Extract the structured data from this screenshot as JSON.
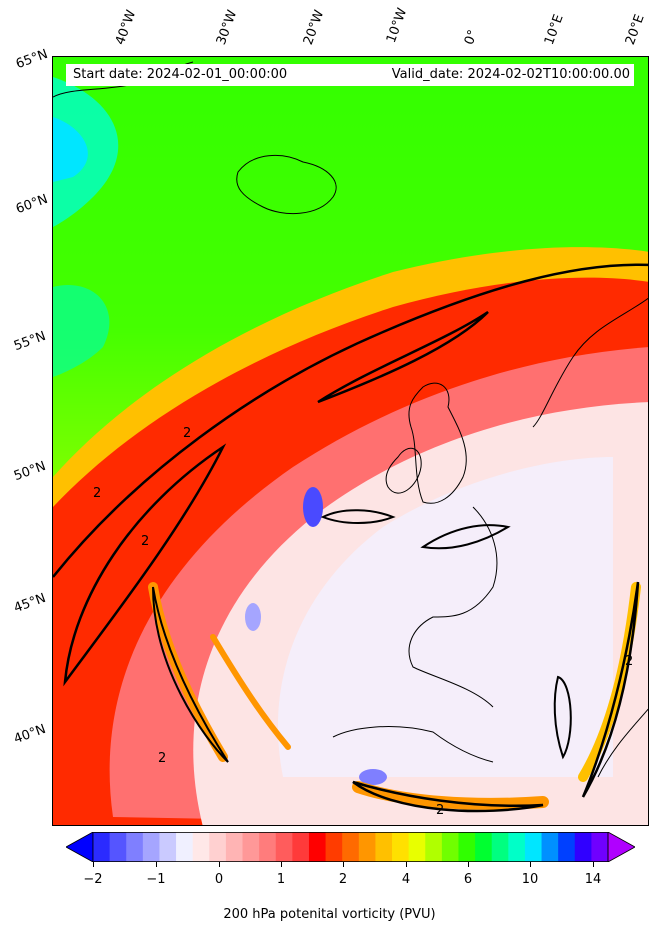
{
  "header": {
    "start_date": "Start date: 2024-02-01_00:00:00",
    "valid_date": "Valid_date: 2024-02-02T10:00:00.00"
  },
  "map": {
    "lon_labels": [
      "40°W",
      "30°W",
      "20°W",
      "10°W",
      "0°",
      "10°E",
      "20°E"
    ],
    "lat_labels": [
      "65°N",
      "60°N",
      "55°N",
      "50°N",
      "45°N",
      "40°N"
    ],
    "contour_label": "2",
    "colors": {
      "background_green": "#33ff00",
      "jet_red": "#ff1a00",
      "trough_pale": "#fde8e8",
      "cyan": "#00ffe0"
    }
  },
  "colorbar": {
    "label": "200 hPa potenital vorticity (PVU)",
    "ticks": [
      "−2",
      "−1",
      "0",
      "1",
      "2",
      "4",
      "6",
      "10",
      "14"
    ],
    "colors": [
      "#0000ff",
      "#2b2bff",
      "#5555ff",
      "#7f7fff",
      "#a5a5ff",
      "#cacaff",
      "#f0f0ff",
      "#ffe8e8",
      "#ffd0d0",
      "#ffb4b4",
      "#ff9898",
      "#ff7c7c",
      "#ff5c5c",
      "#ff3a3a",
      "#ff0000",
      "#ff3c00",
      "#ff6a00",
      "#ff9600",
      "#ffc000",
      "#ffe000",
      "#e8ff00",
      "#b0ff00",
      "#70ff00",
      "#30ff00",
      "#00ff30",
      "#00ff80",
      "#00ffc8",
      "#00e6ff",
      "#0090ff",
      "#0040ff",
      "#3000ff",
      "#7000ff",
      "#b000ff"
    ]
  }
}
